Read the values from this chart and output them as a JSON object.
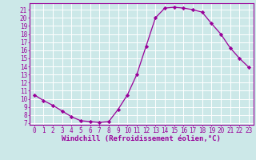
{
  "x": [
    0,
    1,
    2,
    3,
    4,
    5,
    6,
    7,
    8,
    9,
    10,
    11,
    12,
    13,
    14,
    15,
    16,
    17,
    18,
    19,
    20,
    21,
    22,
    23
  ],
  "y": [
    10.5,
    9.8,
    9.2,
    8.5,
    7.8,
    7.3,
    7.2,
    7.1,
    7.2,
    8.7,
    10.5,
    13.0,
    16.5,
    20.0,
    21.2,
    21.3,
    21.2,
    21.0,
    20.7,
    19.3,
    18.0,
    16.3,
    15.0,
    13.9
  ],
  "line_color": "#990099",
  "marker": "D",
  "marker_size": 2.2,
  "bg_color": "#cce8e8",
  "grid_color": "#ffffff",
  "xlabel": "Windchill (Refroidissement éolien,°C)",
  "ylabel": "",
  "xlim": [
    -0.5,
    23.5
  ],
  "ylim": [
    6.8,
    21.8
  ],
  "yticks": [
    7,
    8,
    9,
    10,
    11,
    12,
    13,
    14,
    15,
    16,
    17,
    18,
    19,
    20,
    21
  ],
  "xticks": [
    0,
    1,
    2,
    3,
    4,
    5,
    6,
    7,
    8,
    9,
    10,
    11,
    12,
    13,
    14,
    15,
    16,
    17,
    18,
    19,
    20,
    21,
    22,
    23
  ],
  "tick_color": "#990099",
  "label_color": "#990099",
  "axis_color": "#990099",
  "xlabel_fontsize": 6.5,
  "tick_fontsize": 5.5
}
